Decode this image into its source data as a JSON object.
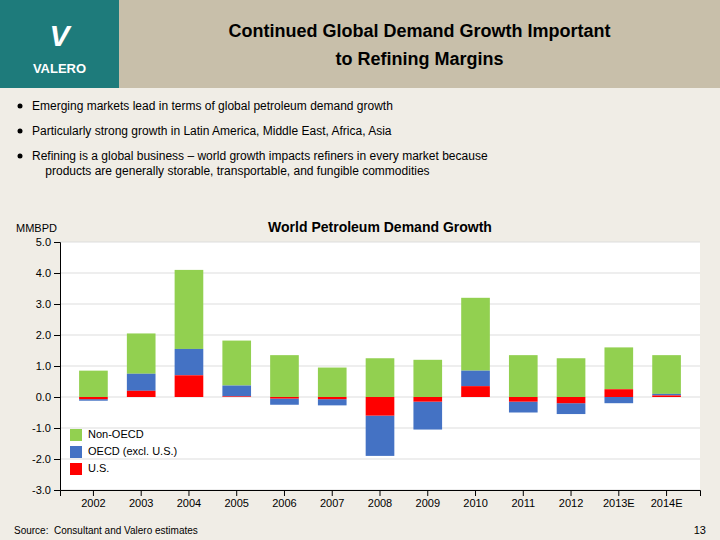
{
  "chart_data": {
    "type": "bar",
    "title": "World Petroleum Demand Growth",
    "ylabel": "MMBPD",
    "categories": [
      "2002",
      "2003",
      "2004",
      "2005",
      "2006",
      "2007",
      "2008",
      "2009",
      "2010",
      "2011",
      "2012",
      "2013E",
      "2014E"
    ],
    "series": [
      {
        "name": "Non-OECD",
        "color": "#92d050",
        "values": [
          0.85,
          1.3,
          2.55,
          1.45,
          1.35,
          0.95,
          1.25,
          1.2,
          2.35,
          1.35,
          1.25,
          1.35,
          1.25
        ]
      },
      {
        "name": "OECD (excl. U.S.)",
        "color": "#4472c4",
        "values": [
          -0.05,
          0.55,
          0.85,
          0.35,
          -0.2,
          -0.2,
          -1.3,
          -0.9,
          0.5,
          -0.35,
          -0.35,
          -0.2,
          0.05
        ]
      },
      {
        "name": "U.S.",
        "color": "#ff0000",
        "values": [
          -0.07,
          0.2,
          0.7,
          0.02,
          -0.05,
          -0.07,
          -0.6,
          -0.15,
          0.35,
          -0.15,
          -0.2,
          0.25,
          0.05
        ]
      }
    ],
    "stacked": true,
    "ylim": [
      -3.0,
      5.0
    ],
    "yticks": [
      {
        "value": -3.0,
        "label": "-3.0"
      },
      {
        "value": -2.0,
        "label": "-2.0"
      },
      {
        "value": -1.0,
        "label": "-1.0"
      },
      {
        "value": 0.0,
        "label": "0.0"
      },
      {
        "value": 1.0,
        "label": "1.0"
      },
      {
        "value": 2.0,
        "label": "2.0"
      },
      {
        "value": 3.0,
        "label": "3.0"
      },
      {
        "value": 4.0,
        "label": "4.0"
      },
      {
        "value": 5.0,
        "label": "5.0"
      }
    ],
    "grid": true,
    "legend": "lower left"
  },
  "header": {
    "logo": {
      "texts": [
        "V",
        "VALERO"
      ],
      "color": "#1e7b7b"
    },
    "title": [
      "Continued Global Demand Growth Important",
      "to Refining Margins"
    ],
    "color": "#c8bfaa"
  },
  "bullets": [
    "Emerging markets lead in terms of global petroleum demand growth",
    "Particularly strong growth in Latin America, Middle East, Africa, Asia",
    "Refining is a global business – world growth impacts refiners in every market because\n    products are generally storable, transportable, and fungible commodities"
  ],
  "source": "Source:  Consultant and Valero estimates",
  "page_number": "13"
}
